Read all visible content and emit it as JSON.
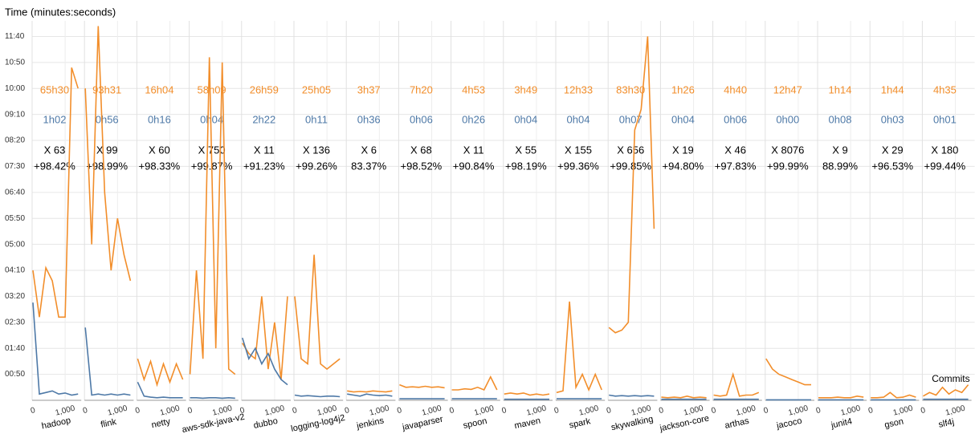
{
  "chart_data": {
    "type": "line",
    "y_label": "Time (minutes:seconds)",
    "x_label": "Commits",
    "ylim": [
      0,
      730
    ],
    "yticks": [
      {
        "value": 50,
        "label": "00:50"
      },
      {
        "value": 100,
        "label": "01:40"
      },
      {
        "value": 150,
        "label": "02:30"
      },
      {
        "value": 200,
        "label": "03:20"
      },
      {
        "value": 250,
        "label": "04:10"
      },
      {
        "value": 300,
        "label": "05:00"
      },
      {
        "value": 350,
        "label": "05:50"
      },
      {
        "value": 400,
        "label": "06:40"
      },
      {
        "value": 450,
        "label": "07:30"
      },
      {
        "value": 500,
        "label": "08:20"
      },
      {
        "value": 550,
        "label": "09:10"
      },
      {
        "value": 600,
        "label": "10:00"
      },
      {
        "value": 650,
        "label": "10:50"
      },
      {
        "value": 700,
        "label": "11:40"
      }
    ],
    "xlim": [
      0,
      1500
    ],
    "xticks": [
      0,
      {
        "value": 1000,
        "label": "1,000"
      }
    ],
    "x": [
      0,
      200,
      400,
      600,
      800,
      1000,
      1200,
      1400
    ],
    "colors": [
      "#f28e2b",
      "#4e79a7"
    ],
    "grid": true,
    "panels": [
      {
        "name": "hadoop",
        "time_a": "65h30",
        "time_b": "1h02",
        "factor": "X 63",
        "gain": "+98.42%",
        "values_a": [
          250,
          160,
          255,
          230,
          160,
          160,
          640,
          600
        ],
        "values_b": [
          188,
          12,
          15,
          18,
          12,
          14,
          10,
          12
        ]
      },
      {
        "name": "flink",
        "time_a": "93h31",
        "time_b": "0h56",
        "factor": "X 99",
        "gain": "+98.99%",
        "values_a": [
          600,
          300,
          720,
          400,
          250,
          350,
          280,
          230
        ],
        "values_b": [
          140,
          10,
          12,
          10,
          12,
          10,
          12,
          10
        ]
      },
      {
        "name": "netty",
        "time_a": "16h04",
        "time_b": "0h16",
        "factor": "X 60",
        "gain": "+98.33%",
        "values_a": [
          80,
          40,
          75,
          30,
          70,
          35,
          70,
          40
        ],
        "values_b": [
          35,
          8,
          6,
          5,
          6,
          5,
          5,
          5
        ]
      },
      {
        "name": "aws-sdk-java-v2",
        "time_a": "58h09",
        "time_b": "0h04",
        "factor": "X 750",
        "gain": "+99.87%",
        "values_a": [
          50,
          250,
          80,
          660,
          100,
          650,
          60,
          50
        ],
        "values_b": [
          5,
          5,
          4,
          5,
          5,
          4,
          5,
          4
        ]
      },
      {
        "name": "dubbo",
        "time_a": "26h59",
        "time_b": "2h22",
        "factor": "X 11",
        "gain": "+91.23%",
        "values_a": [
          110,
          90,
          80,
          200,
          60,
          150,
          40,
          200
        ],
        "values_b": [
          120,
          80,
          100,
          70,
          90,
          60,
          40,
          30
        ]
      },
      {
        "name": "logging-log4j2",
        "time_a": "25h05",
        "time_b": "0h11",
        "factor": "X 136",
        "gain": "+99.26%",
        "values_a": [
          200,
          80,
          70,
          280,
          70,
          60,
          70,
          80
        ],
        "values_b": [
          10,
          8,
          9,
          8,
          7,
          8,
          8,
          7
        ]
      },
      {
        "name": "jenkins",
        "time_a": "3h37",
        "time_b": "0h36",
        "factor": "X 6",
        "gain": "83.37%",
        "values_a": [
          18,
          16,
          17,
          16,
          18,
          17,
          16,
          18
        ],
        "values_b": [
          12,
          10,
          8,
          12,
          10,
          9,
          10,
          8
        ]
      },
      {
        "name": "javaparser",
        "time_a": "7h20",
        "time_b": "0h06",
        "factor": "X 68",
        "gain": "+98.52%",
        "values_a": [
          30,
          25,
          26,
          25,
          27,
          25,
          26,
          24
        ],
        "values_b": [
          3,
          3,
          3,
          3,
          3,
          3,
          3,
          3
        ]
      },
      {
        "name": "spoon",
        "time_a": "4h53",
        "time_b": "0h26",
        "factor": "X 11",
        "gain": "+90.84%",
        "values_a": [
          20,
          20,
          22,
          21,
          25,
          20,
          45,
          20
        ],
        "values_b": [
          3,
          3,
          3,
          3,
          3,
          3,
          3,
          3
        ]
      },
      {
        "name": "maven",
        "time_a": "3h49",
        "time_b": "0h04",
        "factor": "X 55",
        "gain": "+98.19%",
        "values_a": [
          12,
          14,
          12,
          14,
          10,
          12,
          10,
          12
        ],
        "values_b": [
          2,
          2,
          2,
          2,
          2,
          2,
          2,
          2
        ]
      },
      {
        "name": "spark",
        "time_a": "12h33",
        "time_b": "0h04",
        "factor": "X 155",
        "gain": "+99.36%",
        "values_a": [
          15,
          18,
          190,
          25,
          50,
          20,
          50,
          20
        ],
        "values_b": [
          3,
          3,
          3,
          3,
          3,
          3,
          3,
          3
        ]
      },
      {
        "name": "skywalking",
        "time_a": "83h30",
        "time_b": "0h07",
        "factor": "X 656",
        "gain": "+99.85%",
        "values_a": [
          140,
          130,
          135,
          150,
          520,
          560,
          700,
          330
        ],
        "values_b": [
          10,
          8,
          9,
          8,
          9,
          8,
          9,
          8
        ]
      },
      {
        "name": "jackson-core",
        "time_a": "1h26",
        "time_b": "0h04",
        "factor": "X 19",
        "gain": "+94.80%",
        "values_a": [
          6,
          5,
          6,
          5,
          8,
          5,
          6,
          5
        ],
        "values_b": [
          2,
          2,
          2,
          2,
          2,
          2,
          2,
          2
        ]
      },
      {
        "name": "arthas",
        "time_a": "4h40",
        "time_b": "0h06",
        "factor": "X 46",
        "gain": "+97.83%",
        "values_a": [
          10,
          8,
          10,
          50,
          8,
          10,
          10,
          15
        ],
        "values_b": [
          2,
          2,
          2,
          2,
          2,
          2,
          2,
          2
        ]
      },
      {
        "name": "jacoco",
        "time_a": "12h47",
        "time_b": "0h00",
        "factor": "X 8076",
        "gain": "+99.99%",
        "values_a": [
          80,
          60,
          50,
          45,
          40,
          35,
          30,
          30
        ],
        "values_b": [
          1,
          1,
          1,
          1,
          1,
          1,
          1,
          1
        ]
      },
      {
        "name": "junit4",
        "time_a": "1h14",
        "time_b": "0h08",
        "factor": "X 9",
        "gain": "88.99%",
        "values_a": [
          5,
          5,
          5,
          6,
          5,
          5,
          8,
          6
        ],
        "values_b": [
          1,
          1,
          1,
          1,
          1,
          1,
          1,
          1
        ]
      },
      {
        "name": "gson",
        "time_a": "1h44",
        "time_b": "0h03",
        "factor": "X 29",
        "gain": "+96.53%",
        "values_a": [
          5,
          5,
          6,
          15,
          5,
          6,
          10,
          6
        ],
        "values_b": [
          1,
          1,
          1,
          1,
          1,
          1,
          1,
          1
        ]
      },
      {
        "name": "slf4j",
        "time_a": "4h35",
        "time_b": "0h01",
        "factor": "X 180",
        "gain": "+99.44%",
        "values_a": [
          8,
          15,
          10,
          25,
          12,
          20,
          15,
          30
        ],
        "values_b": [
          2,
          2,
          2,
          2,
          2,
          2,
          2,
          2
        ]
      }
    ]
  }
}
